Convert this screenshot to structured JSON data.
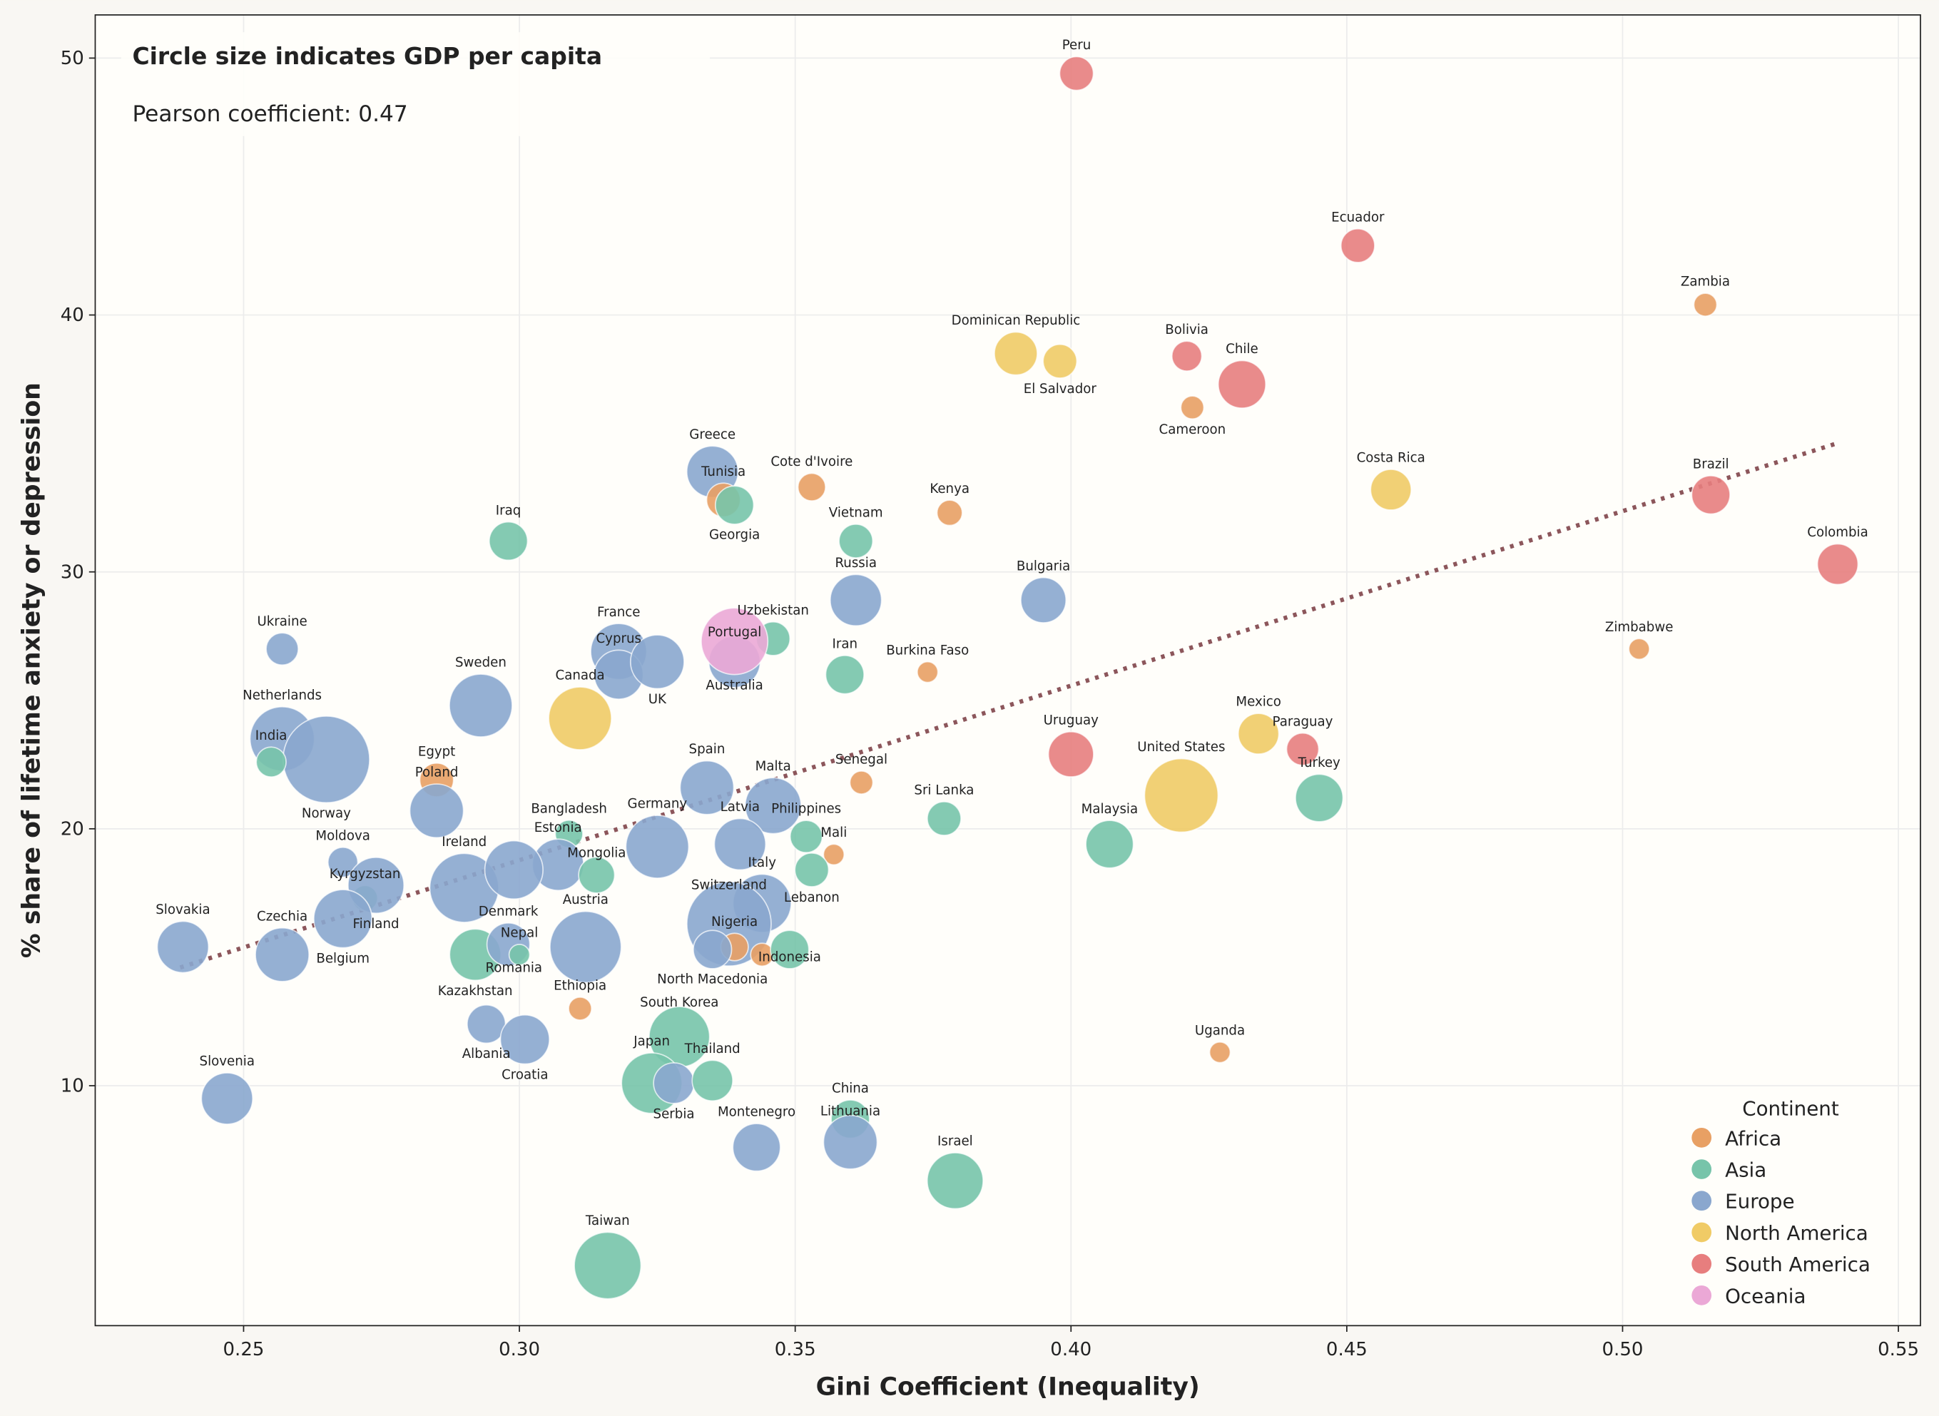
{
  "chart_data": {
    "type": "scatter",
    "title": "",
    "xlabel": "Gini Coefficient (Inequality)",
    "ylabel": "% share of lifetime anxiety or depression",
    "xlim": [
      0.2231,
      0.554
    ],
    "ylim": [
      0.66,
      51.68
    ],
    "xticks": [
      "0.25",
      "0.30",
      "0.35",
      "0.40",
      "0.45",
      "0.50",
      "0.55"
    ],
    "yticks": [
      "10",
      "20",
      "30",
      "40",
      "50"
    ],
    "grid": true,
    "annotation_title": "Circle size indicates GDP per capita",
    "annotation_text": "Pearson coefficient: 0.47",
    "trendline": {
      "x": [
        0.2385,
        0.5388
      ],
      "y": [
        14.6,
        35.0
      ],
      "style": "dotted",
      "color": "#8c565b"
    },
    "legend": {
      "title": "Continent",
      "placement": "bottom-right",
      "entries": [
        "Africa",
        "Asia",
        "Europe",
        "North America",
        "South America",
        "Oceania"
      ]
    },
    "colors": {
      "Africa": "#e8a064",
      "Asia": "#77c4aa",
      "Europe": "#8aa7ce",
      "North America": "#f0cb66",
      "South America": "#e77e7e",
      "Oceania": "#eba8d6"
    },
    "points": [
      {
        "name": "Peru",
        "continent": "South America",
        "x": 0.401,
        "y": 49.4,
        "size": 0.31
      },
      {
        "name": "Ecuador",
        "continent": "South America",
        "x": 0.452,
        "y": 42.7,
        "size": 0.31
      },
      {
        "name": "Zambia",
        "continent": "Africa",
        "x": 0.515,
        "y": 40.4,
        "size": 0.17
      },
      {
        "name": "Dominican Republic",
        "continent": "North America",
        "x": 0.39,
        "y": 38.5,
        "size": 0.43
      },
      {
        "name": "El Salvador",
        "continent": "North America",
        "x": 0.398,
        "y": 38.2,
        "size": 0.31
      },
      {
        "name": "Bolivia",
        "continent": "South America",
        "x": 0.421,
        "y": 38.4,
        "size": 0.26
      },
      {
        "name": "Chile",
        "continent": "South America",
        "x": 0.431,
        "y": 37.3,
        "size": 0.49
      },
      {
        "name": "Cameroon",
        "continent": "Africa",
        "x": 0.422,
        "y": 36.4,
        "size": 0.17
      },
      {
        "name": "Costa Rica",
        "continent": "North America",
        "x": 0.458,
        "y": 33.2,
        "size": 0.4
      },
      {
        "name": "Brazil",
        "continent": "South America",
        "x": 0.516,
        "y": 33.0,
        "size": 0.37
      },
      {
        "name": "Colombia",
        "continent": "South America",
        "x": 0.539,
        "y": 30.3,
        "size": 0.4
      },
      {
        "name": "Zimbabwe",
        "continent": "Africa",
        "x": 0.503,
        "y": 27.0,
        "size": 0.14
      },
      {
        "name": "Greece",
        "continent": "Europe",
        "x": 0.335,
        "y": 33.9,
        "size": 0.54
      },
      {
        "name": "Tunisia",
        "continent": "Africa",
        "x": 0.337,
        "y": 32.8,
        "size": 0.31
      },
      {
        "name": "Georgia",
        "continent": "Asia",
        "x": 0.339,
        "y": 32.6,
        "size": 0.37
      },
      {
        "name": "Cote d'Ivoire",
        "continent": "Africa",
        "x": 0.353,
        "y": 33.3,
        "size": 0.23
      },
      {
        "name": "Kenya",
        "continent": "Africa",
        "x": 0.378,
        "y": 32.3,
        "size": 0.2
      },
      {
        "name": "Iraq",
        "continent": "Asia",
        "x": 0.298,
        "y": 31.2,
        "size": 0.37
      },
      {
        "name": "Vietnam",
        "continent": "Asia",
        "x": 0.361,
        "y": 31.2,
        "size": 0.31
      },
      {
        "name": "Russia",
        "continent": "Europe",
        "x": 0.361,
        "y": 28.9,
        "size": 0.54
      },
      {
        "name": "Bulgaria",
        "continent": "Europe",
        "x": 0.395,
        "y": 28.9,
        "size": 0.46
      },
      {
        "name": "Ukraine",
        "continent": "Europe",
        "x": 0.257,
        "y": 27.0,
        "size": 0.29
      },
      {
        "name": "France",
        "continent": "Europe",
        "x": 0.318,
        "y": 26.9,
        "size": 0.6
      },
      {
        "name": "Uzbekistan",
        "continent": "Asia",
        "x": 0.346,
        "y": 27.4,
        "size": 0.31
      },
      {
        "name": "Portugal",
        "continent": "Europe",
        "x": 0.339,
        "y": 26.5,
        "size": 0.54
      },
      {
        "name": "Australia",
        "continent": "Oceania",
        "x": 0.339,
        "y": 27.3,
        "size": 0.74
      },
      {
        "name": "Cyprus",
        "continent": "Europe",
        "x": 0.318,
        "y": 26.0,
        "size": 0.51
      },
      {
        "name": "UK",
        "continent": "Europe",
        "x": 0.325,
        "y": 26.5,
        "size": 0.57
      },
      {
        "name": "Iran",
        "continent": "Asia",
        "x": 0.359,
        "y": 26.0,
        "size": 0.37
      },
      {
        "name": "Burkina Faso",
        "continent": "Africa",
        "x": 0.374,
        "y": 26.1,
        "size": 0.14
      },
      {
        "name": "Sweden",
        "continent": "Europe",
        "x": 0.293,
        "y": 24.8,
        "size": 0.69
      },
      {
        "name": "Canada",
        "continent": "North America",
        "x": 0.311,
        "y": 24.3,
        "size": 0.69
      },
      {
        "name": "Netherlands",
        "continent": "Europe",
        "x": 0.257,
        "y": 23.5,
        "size": 0.71
      },
      {
        "name": "Norway",
        "continent": "Europe",
        "x": 0.265,
        "y": 22.7,
        "size": 1.0
      },
      {
        "name": "India",
        "continent": "Asia",
        "x": 0.255,
        "y": 22.6,
        "size": 0.26
      },
      {
        "name": "Egypt",
        "continent": "Africa",
        "x": 0.285,
        "y": 21.9,
        "size": 0.31
      },
      {
        "name": "Poland",
        "continent": "Europe",
        "x": 0.285,
        "y": 20.7,
        "size": 0.57
      },
      {
        "name": "Uruguay",
        "continent": "South America",
        "x": 0.4,
        "y": 22.9,
        "size": 0.46
      },
      {
        "name": "Mexico",
        "continent": "North America",
        "x": 0.434,
        "y": 23.7,
        "size": 0.4
      },
      {
        "name": "Paraguay",
        "continent": "South America",
        "x": 0.442,
        "y": 23.1,
        "size": 0.29
      },
      {
        "name": "United States",
        "continent": "North America",
        "x": 0.42,
        "y": 21.3,
        "size": 0.83
      },
      {
        "name": "Turkey",
        "continent": "Asia",
        "x": 0.445,
        "y": 21.2,
        "size": 0.49
      },
      {
        "name": "Senegal",
        "continent": "Africa",
        "x": 0.362,
        "y": 21.8,
        "size": 0.17
      },
      {
        "name": "Spain",
        "continent": "Europe",
        "x": 0.334,
        "y": 21.6,
        "size": 0.57
      },
      {
        "name": "Malta",
        "continent": "Europe",
        "x": 0.346,
        "y": 20.9,
        "size": 0.6
      },
      {
        "name": "Sri Lanka",
        "continent": "Asia",
        "x": 0.377,
        "y": 20.4,
        "size": 0.31
      },
      {
        "name": "Malaysia",
        "continent": "Asia",
        "x": 0.407,
        "y": 19.4,
        "size": 0.49
      },
      {
        "name": "Bangladesh",
        "continent": "Asia",
        "x": 0.309,
        "y": 19.8,
        "size": 0.23
      },
      {
        "name": "Estonia",
        "continent": "Europe",
        "x": 0.307,
        "y": 18.6,
        "size": 0.54
      },
      {
        "name": "Ireland",
        "continent": "Europe",
        "x": 0.29,
        "y": 17.7,
        "size": 0.77
      },
      {
        "name": "",
        "continent": "Europe",
        "x": 0.299,
        "y": 18.4,
        "size": 0.63
      },
      {
        "name": "Mongolia",
        "continent": "Asia",
        "x": 0.314,
        "y": 18.2,
        "size": 0.34
      },
      {
        "name": "Germany",
        "continent": "Europe",
        "x": 0.325,
        "y": 19.3,
        "size": 0.69
      },
      {
        "name": "Latvia",
        "continent": "Europe",
        "x": 0.34,
        "y": 19.4,
        "size": 0.54
      },
      {
        "name": "Philippines",
        "continent": "Asia",
        "x": 0.352,
        "y": 19.7,
        "size": 0.29
      },
      {
        "name": "Mali",
        "continent": "Africa",
        "x": 0.357,
        "y": 19.0,
        "size": 0.14
      },
      {
        "name": "Lebanon",
        "continent": "Asia",
        "x": 0.353,
        "y": 18.4,
        "size": 0.31
      },
      {
        "name": "Italy",
        "continent": "Europe",
        "x": 0.344,
        "y": 17.1,
        "size": 0.63
      },
      {
        "name": "Switzerland",
        "continent": "Europe",
        "x": 0.338,
        "y": 16.3,
        "size": 0.97
      },
      {
        "name": "Nigeria",
        "continent": "Africa",
        "x": 0.339,
        "y": 15.4,
        "size": 0.23
      },
      {
        "name": "North Macedonia",
        "continent": "Europe",
        "x": 0.335,
        "y": 15.3,
        "size": 0.37
      },
      {
        "name": "",
        "continent": "Africa",
        "x": 0.344,
        "y": 15.1,
        "size": 0.17
      },
      {
        "name": "Indonesia",
        "continent": "Asia",
        "x": 0.349,
        "y": 15.3,
        "size": 0.37
      },
      {
        "name": "Moldova",
        "continent": "Europe",
        "x": 0.268,
        "y": 18.7,
        "size": 0.26
      },
      {
        "name": "Kyrgyzstan",
        "continent": "Asia",
        "x": 0.272,
        "y": 17.3,
        "size": 0.2
      },
      {
        "name": "Finland",
        "continent": "Europe",
        "x": 0.274,
        "y": 17.8,
        "size": 0.6
      },
      {
        "name": "Belgium",
        "continent": "Europe",
        "x": 0.268,
        "y": 16.5,
        "size": 0.63
      },
      {
        "name": "Czechia",
        "continent": "Europe",
        "x": 0.257,
        "y": 15.1,
        "size": 0.57
      },
      {
        "name": "Slovakia",
        "continent": "Europe",
        "x": 0.239,
        "y": 15.4,
        "size": 0.54
      },
      {
        "name": "Austria",
        "continent": "Europe",
        "x": 0.312,
        "y": 15.4,
        "size": 0.8
      },
      {
        "name": "Kazakhstan",
        "continent": "Asia",
        "x": 0.292,
        "y": 15.1,
        "size": 0.54
      },
      {
        "name": "Denmark",
        "continent": "Europe",
        "x": 0.298,
        "y": 15.5,
        "size": 0.43
      },
      {
        "name": "Nepal",
        "continent": "Asia",
        "x": 0.3,
        "y": 15.1,
        "size": 0.14
      },
      {
        "name": "Romania",
        "continent": "Europe",
        "x": 0.299,
        "y": 15.3,
        "size": 0.0
      },
      {
        "name": "Albania",
        "continent": "Europe",
        "x": 0.294,
        "y": 12.4,
        "size": 0.37
      },
      {
        "name": "Croatia",
        "continent": "Europe",
        "x": 0.301,
        "y": 11.8,
        "size": 0.51
      },
      {
        "name": "Ethiopia",
        "continent": "Africa",
        "x": 0.311,
        "y": 13.0,
        "size": 0.17
      },
      {
        "name": "South Korea",
        "continent": "Asia",
        "x": 0.329,
        "y": 11.9,
        "size": 0.66
      },
      {
        "name": "Japan",
        "continent": "Asia",
        "x": 0.324,
        "y": 10.1,
        "size": 0.66
      },
      {
        "name": "Serbia",
        "continent": "Europe",
        "x": 0.328,
        "y": 10.1,
        "size": 0.4
      },
      {
        "name": "Thailand",
        "continent": "Asia",
        "x": 0.335,
        "y": 10.2,
        "size": 0.4
      },
      {
        "name": "Slovenia",
        "continent": "Europe",
        "x": 0.247,
        "y": 9.5,
        "size": 0.54
      },
      {
        "name": "Montenegro",
        "continent": "Europe",
        "x": 0.343,
        "y": 7.6,
        "size": 0.49
      },
      {
        "name": "China",
        "continent": "Asia",
        "x": 0.36,
        "y": 8.7,
        "size": 0.37
      },
      {
        "name": "Lithuania",
        "continent": "Europe",
        "x": 0.36,
        "y": 7.8,
        "size": 0.57
      },
      {
        "name": "Israel",
        "continent": "Asia",
        "x": 0.379,
        "y": 6.3,
        "size": 0.6
      },
      {
        "name": "Taiwan",
        "continent": "Asia",
        "x": 0.316,
        "y": 3.0,
        "size": 0.74
      },
      {
        "name": "Uganda",
        "continent": "Africa",
        "x": 0.427,
        "y": 11.3,
        "size": 0.14
      }
    ]
  }
}
